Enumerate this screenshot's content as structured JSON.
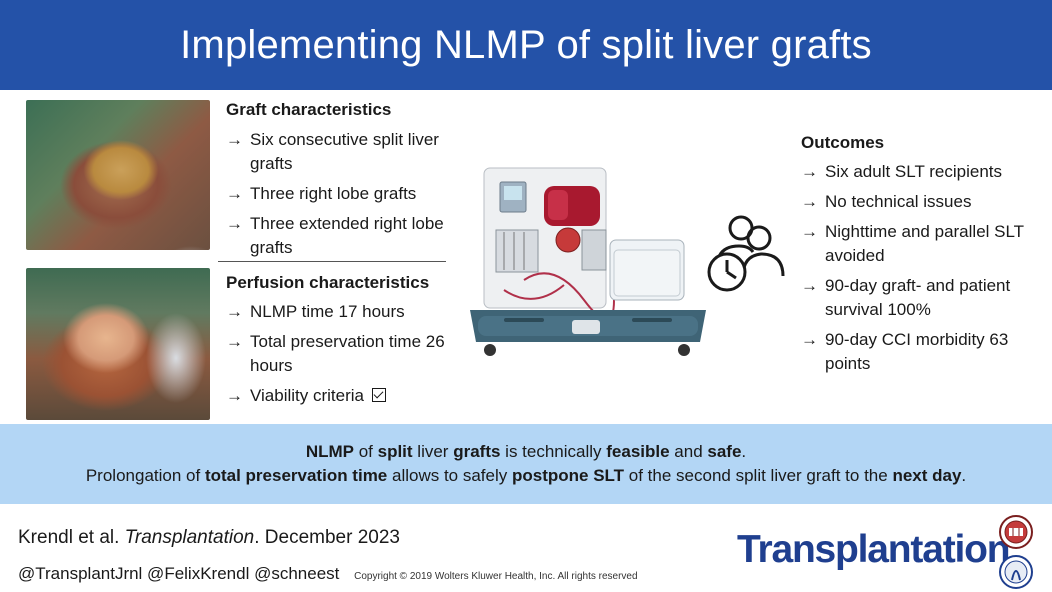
{
  "header": {
    "title": "Implementing NLMP of split liver grafts"
  },
  "graft": {
    "title": "Graft characteristics",
    "items": [
      "Six consecutive split liver grafts",
      "Three right lobe grafts",
      "Three extended right lobe grafts"
    ]
  },
  "perfusion": {
    "title": "Perfusion characteristics",
    "items": [
      "NLMP time 17 hours",
      "Total preservation time 26 hours",
      "Viability criteria"
    ]
  },
  "outcomes": {
    "title": "Outcomes",
    "items": [
      "Six adult SLT recipients",
      "No technical issues",
      "Nighttime and parallel SLT avoided",
      "90-day graft- and patient survival 100%",
      "90-day CCI morbidity 63 points"
    ]
  },
  "summary": {
    "line1": [
      {
        "text": "NLMP",
        "bold": true
      },
      {
        "text": " of ",
        "bold": false
      },
      {
        "text": "split",
        "bold": true
      },
      {
        "text": " liver ",
        "bold": false
      },
      {
        "text": "grafts",
        "bold": true
      },
      {
        "text": " is technically ",
        "bold": false
      },
      {
        "text": "feasible",
        "bold": true
      },
      {
        "text": " and ",
        "bold": false
      },
      {
        "text": "safe",
        "bold": true
      },
      {
        "text": ".",
        "bold": false
      }
    ],
    "line2": [
      {
        "text": "Prolongation of ",
        "bold": false
      },
      {
        "text": "total preservation time",
        "bold": true
      },
      {
        "text": " allows to safely ",
        "bold": false
      },
      {
        "text": "postpone SLT",
        "bold": true
      },
      {
        "text": " of the second split liver graft to the ",
        "bold": false
      },
      {
        "text": "next day",
        "bold": true
      },
      {
        "text": ".",
        "bold": false
      }
    ]
  },
  "footer": {
    "citation_authors": "Krendl et al. ",
    "citation_journal": "Transplantation",
    "citation_date": ". December 2023",
    "handles": "@TransplantJrnl @FelixKrendl @schneest",
    "copyright": "Copyright © 2019  Wolters Kluwer Health, Inc. All rights reserved",
    "brand": "Transplantation",
    "brand_mark": "®"
  },
  "icons": {
    "arrow": "→",
    "checkbox": "checkbox-checked-icon",
    "people": "people-clock-icon"
  },
  "colors": {
    "banner": "#2452a8",
    "band": "#b3d6f5",
    "brand": "#1f3f8f"
  }
}
